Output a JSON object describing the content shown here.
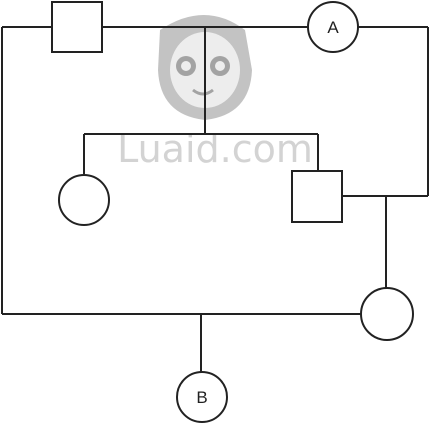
{
  "nodes": {
    "male_1": {
      "shape": "square"
    },
    "node_a": {
      "shape": "circle",
      "label": "A"
    },
    "female_1": {
      "shape": "circle"
    },
    "male_2": {
      "shape": "square"
    },
    "female_2": {
      "shape": "circle"
    },
    "node_b": {
      "shape": "circle",
      "label": "B"
    }
  },
  "watermark": {
    "text": "Luaid.com"
  },
  "colors": {
    "stroke": "#222222",
    "background": "#ffffff",
    "watermark": "#cfcfcf"
  }
}
